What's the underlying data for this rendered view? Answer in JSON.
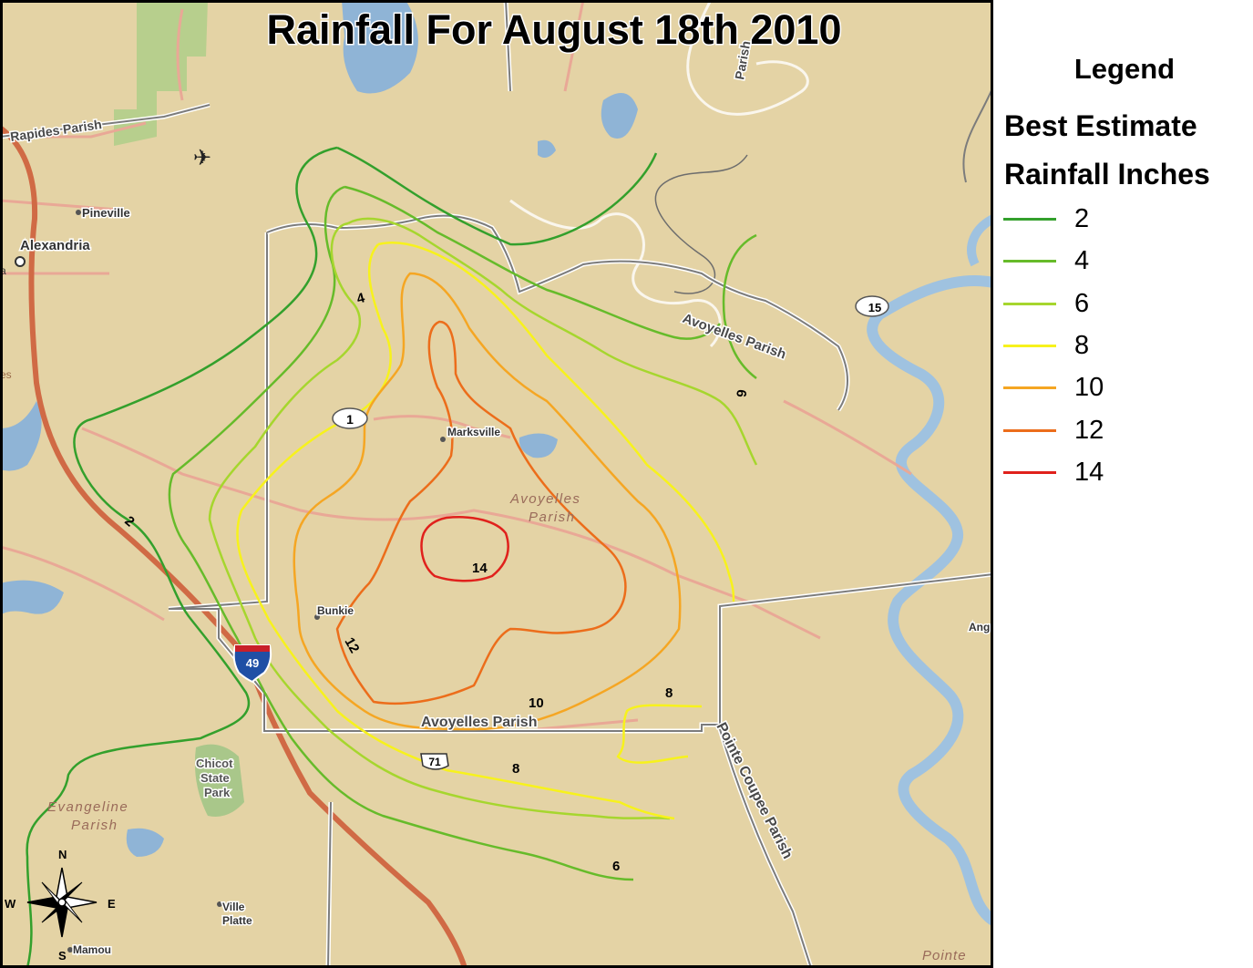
{
  "title": "Rainfall For August 18th 2010",
  "legend": {
    "heading": "Legend",
    "line1": "Best Estimate",
    "line2": "Rainfall Inches",
    "items": [
      {
        "label": "2",
        "color": "#33a02c"
      },
      {
        "label": "4",
        "color": "#66bb2a"
      },
      {
        "label": "6",
        "color": "#a6d62e"
      },
      {
        "label": "8",
        "color": "#f7f21c"
      },
      {
        "label": "10",
        "color": "#f5a623"
      },
      {
        "label": "12",
        "color": "#ec6d1b"
      },
      {
        "label": "14",
        "color": "#e0211c"
      }
    ]
  },
  "places": {
    "rapides": "Rapides Parish",
    "pineville": "Pineville",
    "alexandria": "Alexandria",
    "marksville": "Marksville",
    "avoyelles_center": "Avoyelles",
    "parish": "Parish",
    "bunkie": "Bunkie",
    "avoyelles_ne": "Avoyelles Parish",
    "avoyelles_s": "Avoyelles Parish",
    "pointe_coupee": "Pointe Coupee Parish",
    "chicot1": "Chicot",
    "chicot2": "State",
    "chicot3": "Park",
    "evangeline1": "Evangeline",
    "evangeline2": "Parish",
    "ville1": "Ville",
    "ville2": "Platte",
    "mamou": "Mamou",
    "pointe_br": "Pointe",
    "ang": "Ang",
    "top_parish": "Parish",
    "partial_a": "a",
    "partial_es": "es"
  },
  "shields": {
    "hwy1": "1",
    "i49": "49",
    "us71": "71",
    "hwy15": "15"
  },
  "contour_labels": {
    "c2": "2",
    "c4": "4",
    "c6a": "6",
    "c6b": "6",
    "c8a": "8",
    "c8b": "8",
    "c10": "10",
    "c12": "12",
    "c14": "14"
  },
  "compass": {
    "n": "N",
    "s": "S",
    "e": "E",
    "w": "W"
  }
}
